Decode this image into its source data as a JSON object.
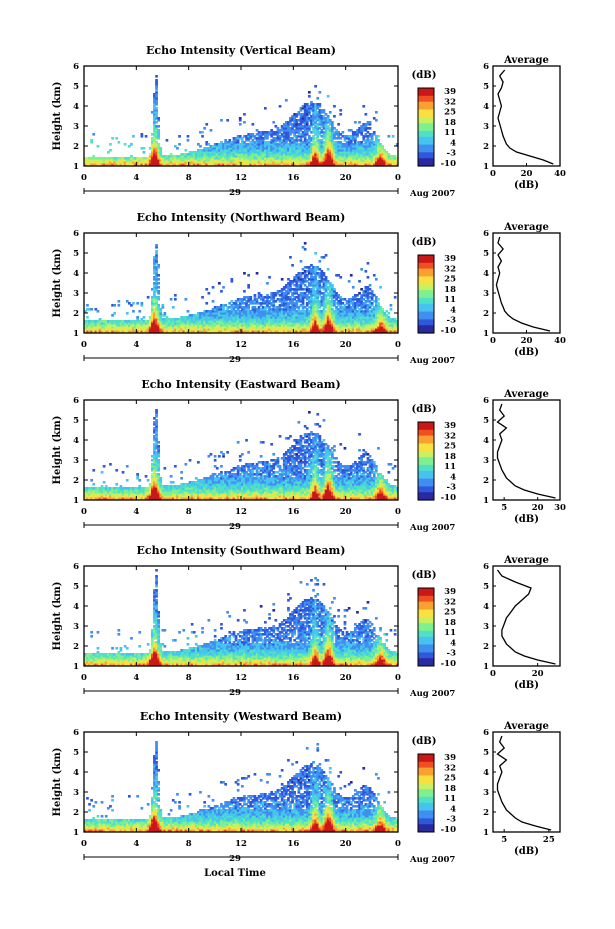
{
  "figure": {
    "xlabel": "Local Time",
    "date_label": "Aug 2007",
    "day_label": "29",
    "colorbar_unit": "(dB)",
    "avg_title": "Average",
    "avg_xlabel": "(dB)",
    "colorbar_ticks": [
      "39",
      "32",
      "25",
      "18",
      "11",
      "4",
      "-3",
      "-10"
    ],
    "color_scale": [
      "#2a2aa0",
      "#2f58dc",
      "#3f8ff0",
      "#46c3ee",
      "#4fe0c8",
      "#7ff090",
      "#c8f060",
      "#f8e040",
      "#f8a030",
      "#f05020",
      "#c81818"
    ]
  },
  "chart_data": [
    {
      "type": "heatmap",
      "title": "Echo Intensity (Vertical Beam)",
      "ylabel": "Height (km)",
      "x_ticks": [
        "0",
        "4",
        "8",
        "12",
        "16",
        "20",
        "0"
      ],
      "xlim": [
        0,
        24
      ],
      "y_ticks": [
        "1",
        "2",
        "3",
        "4",
        "5",
        "6"
      ],
      "ylim": [
        1,
        6
      ],
      "colorbar_range_db": [
        -10,
        39
      ],
      "average_profile": {
        "x_ticks": [
          "0",
          "20",
          "40"
        ],
        "xlim": [
          0,
          40
        ],
        "height_km": [
          1.1,
          1.3,
          1.5,
          1.7,
          1.9,
          2.1,
          2.3,
          2.5,
          2.8,
          3.1,
          3.4,
          3.7,
          4.0,
          4.3,
          4.6,
          4.9,
          5.2,
          5.5,
          5.8
        ],
        "mean_db": [
          36,
          30,
          22,
          14,
          10,
          8,
          7,
          6,
          5,
          4,
          3,
          4,
          5,
          4,
          3,
          5,
          6,
          4,
          7
        ]
      }
    },
    {
      "type": "heatmap",
      "title": "Echo Intensity (Northward Beam)",
      "ylabel": "Height (km)",
      "x_ticks": [
        "0",
        "4",
        "8",
        "12",
        "16",
        "20",
        "0"
      ],
      "xlim": [
        0,
        24
      ],
      "y_ticks": [
        "1",
        "2",
        "3",
        "4",
        "5",
        "6"
      ],
      "ylim": [
        1,
        6
      ],
      "colorbar_range_db": [
        -10,
        39
      ],
      "average_profile": {
        "x_ticks": [
          "0",
          "20",
          "40"
        ],
        "xlim": [
          0,
          40
        ],
        "height_km": [
          1.1,
          1.3,
          1.5,
          1.7,
          1.9,
          2.1,
          2.3,
          2.5,
          2.8,
          3.1,
          3.4,
          3.7,
          4.0,
          4.3,
          4.6,
          4.9,
          5.2,
          5.5,
          5.8
        ],
        "mean_db": [
          34,
          24,
          17,
          12,
          9,
          7,
          6,
          5,
          4,
          3,
          2,
          3,
          4,
          3,
          5,
          3,
          6,
          3,
          4
        ]
      }
    },
    {
      "type": "heatmap",
      "title": "Echo Intensity (Eastward Beam)",
      "ylabel": "Height (km)",
      "x_ticks": [
        "0",
        "4",
        "8",
        "12",
        "16",
        "20",
        "0"
      ],
      "xlim": [
        0,
        24
      ],
      "y_ticks": [
        "1",
        "2",
        "3",
        "4",
        "5",
        "6"
      ],
      "ylim": [
        1,
        6
      ],
      "colorbar_range_db": [
        -10,
        39
      ],
      "average_profile": {
        "x_ticks": [
          "5",
          "20",
          "30"
        ],
        "xlim": [
          0,
          30
        ],
        "height_km": [
          1.1,
          1.3,
          1.5,
          1.7,
          1.9,
          2.1,
          2.3,
          2.5,
          2.8,
          3.1,
          3.4,
          3.7,
          4.0,
          4.3,
          4.6,
          4.9,
          5.2,
          5.5,
          5.8
        ],
        "mean_db": [
          28,
          20,
          14,
          10,
          8,
          6,
          5,
          4,
          3,
          2,
          2,
          3,
          4,
          3,
          6,
          2,
          5,
          3,
          4
        ]
      }
    },
    {
      "type": "heatmap",
      "title": "Echo Intensity (Southward Beam)",
      "ylabel": "Height (km)",
      "x_ticks": [
        "0",
        "4",
        "8",
        "12",
        "16",
        "20",
        "0"
      ],
      "xlim": [
        0,
        24
      ],
      "y_ticks": [
        "1",
        "2",
        "3",
        "4",
        "5",
        "6"
      ],
      "ylim": [
        1,
        6
      ],
      "colorbar_range_db": [
        -10,
        39
      ],
      "average_profile": {
        "x_ticks": [
          "0",
          "20"
        ],
        "xlim": [
          0,
          30
        ],
        "height_km": [
          1.1,
          1.3,
          1.5,
          1.7,
          1.9,
          2.1,
          2.3,
          2.5,
          2.8,
          3.1,
          3.4,
          3.7,
          4.0,
          4.3,
          4.6,
          4.9,
          5.2,
          5.5,
          5.8
        ],
        "mean_db": [
          28,
          20,
          14,
          10,
          8,
          6,
          5,
          4,
          4,
          5,
          6,
          8,
          10,
          13,
          16,
          17,
          10,
          4,
          2
        ]
      }
    },
    {
      "type": "heatmap",
      "title": "Echo Intensity (Westward Beam)",
      "ylabel": "Height (km)",
      "x_ticks": [
        "0",
        "4",
        "8",
        "12",
        "16",
        "20",
        "0"
      ],
      "xlim": [
        0,
        24
      ],
      "y_ticks": [
        "1",
        "2",
        "3",
        "4",
        "5",
        "6"
      ],
      "ylim": [
        1,
        6
      ],
      "colorbar_range_db": [
        -10,
        39
      ],
      "average_profile": {
        "x_ticks": [
          "5",
          "25"
        ],
        "xlim": [
          0,
          30
        ],
        "height_km": [
          1.1,
          1.3,
          1.5,
          1.7,
          1.9,
          2.1,
          2.3,
          2.5,
          2.8,
          3.1,
          3.4,
          3.7,
          4.0,
          4.3,
          4.6,
          4.9,
          5.2,
          5.5,
          5.8
        ],
        "mean_db": [
          26,
          19,
          13,
          10,
          8,
          6,
          5,
          4,
          3,
          2,
          2,
          3,
          4,
          3,
          6,
          2,
          5,
          3,
          4
        ]
      }
    }
  ]
}
